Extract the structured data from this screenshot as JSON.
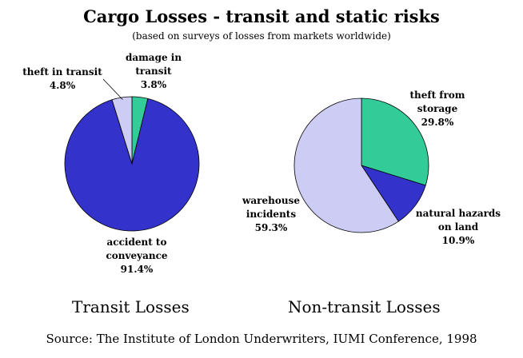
{
  "header": {
    "title": "Cargo Losses - transit and static risks",
    "subtitle": "(based on surveys of losses from markets worldwide)"
  },
  "footer": {
    "source": "Source: The Institute of London Underwriters, IUMI Conference, 1998"
  },
  "chart_data": [
    {
      "type": "pie",
      "title": "Transit Losses",
      "slices": [
        {
          "name": "damage in transit",
          "label_lines": [
            "damage in",
            "transit",
            "3.8%"
          ],
          "value": 3.8,
          "color": "#33cc99"
        },
        {
          "name": "accident to conveyance",
          "label_lines": [
            "accident to",
            "conveyance",
            "91.4%"
          ],
          "value": 91.4,
          "color": "#3333cc"
        },
        {
          "name": "theft in transit",
          "label_lines": [
            "theft in transit",
            "4.8%"
          ],
          "value": 4.8,
          "color": "#ccccf5"
        }
      ]
    },
    {
      "type": "pie",
      "title": "Non-transit Losses",
      "slices": [
        {
          "name": "theft from storage",
          "label_lines": [
            "theft from",
            "storage",
            "29.8%"
          ],
          "value": 29.8,
          "color": "#33cc99"
        },
        {
          "name": "natural hazards on land",
          "label_lines": [
            "natural hazards",
            "on land",
            "10.9%"
          ],
          "value": 10.9,
          "color": "#3333cc"
        },
        {
          "name": "warehouse incidents",
          "label_lines": [
            "warehouse",
            "incidents",
            "59.3%"
          ],
          "value": 59.3,
          "color": "#ccccf5"
        }
      ]
    }
  ]
}
